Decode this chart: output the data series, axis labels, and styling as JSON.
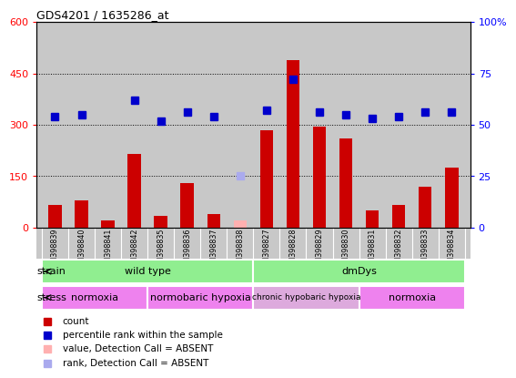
{
  "title": "GDS4201 / 1635286_at",
  "samples": [
    "GSM398839",
    "GSM398840",
    "GSM398841",
    "GSM398842",
    "GSM398835",
    "GSM398836",
    "GSM398837",
    "GSM398838",
    "GSM398827",
    "GSM398828",
    "GSM398829",
    "GSM398830",
    "GSM398831",
    "GSM398832",
    "GSM398833",
    "GSM398834"
  ],
  "counts": [
    65,
    80,
    20,
    215,
    35,
    130,
    40,
    20,
    285,
    490,
    295,
    260,
    50,
    65,
    120,
    175
  ],
  "percentile_ranks": [
    54,
    55,
    null,
    62,
    52,
    56,
    54,
    null,
    57,
    72,
    56,
    55,
    53,
    54,
    56,
    56
  ],
  "absent_value": [
    false,
    false,
    false,
    false,
    false,
    false,
    false,
    true,
    false,
    false,
    false,
    false,
    false,
    false,
    false,
    false
  ],
  "absent_rank_val": [
    null,
    null,
    null,
    null,
    null,
    null,
    null,
    25,
    null,
    null,
    null,
    null,
    null,
    null,
    null,
    null
  ],
  "strain_groups": [
    {
      "label": "wild type",
      "start": 0,
      "end": 8,
      "color": "#90ee90"
    },
    {
      "label": "dmDys",
      "start": 8,
      "end": 16,
      "color": "#90ee90"
    }
  ],
  "stress_groups": [
    {
      "label": "normoxia",
      "start": 0,
      "end": 4,
      "color": "#ee82ee"
    },
    {
      "label": "normobaric hypoxia",
      "start": 4,
      "end": 8,
      "color": "#ee82ee"
    },
    {
      "label": "chronic hypobaric hypoxia",
      "start": 8,
      "end": 12,
      "color": "#ddaadd"
    },
    {
      "label": "normoxia",
      "start": 12,
      "end": 16,
      "color": "#ee82ee"
    }
  ],
  "ylim_left": [
    0,
    600
  ],
  "ylim_right": [
    0,
    100
  ],
  "yticks_left": [
    0,
    150,
    300,
    450,
    600
  ],
  "yticks_right": [
    0,
    25,
    50,
    75,
    100
  ],
  "bar_color": "#cc0000",
  "dot_color": "#0000cc",
  "absent_bar_color": "#ffb0b0",
  "absent_dot_color": "#aaaaee",
  "bg_color": "#c8c8c8",
  "legend_items": [
    {
      "label": "count",
      "color": "#cc0000"
    },
    {
      "label": "percentile rank within the sample",
      "color": "#0000cc"
    },
    {
      "label": "value, Detection Call = ABSENT",
      "color": "#ffb0b0"
    },
    {
      "label": "rank, Detection Call = ABSENT",
      "color": "#aaaaee"
    }
  ]
}
